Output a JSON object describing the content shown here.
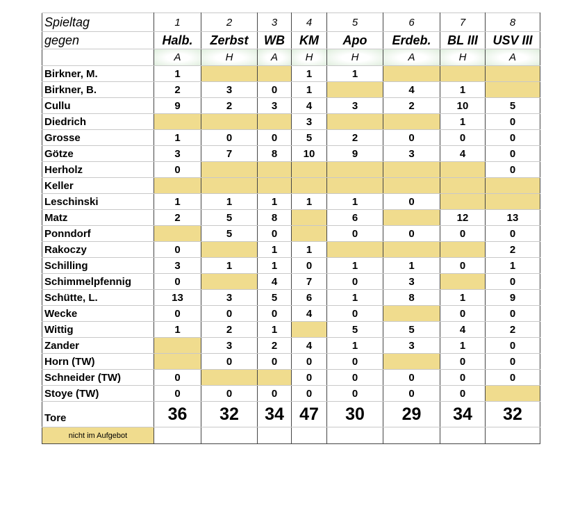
{
  "header": {
    "spieltag_label": "Spieltag",
    "gegen_label": "gegen",
    "spieltage": [
      "1",
      "2",
      "3",
      "4",
      "5",
      "6",
      "7",
      "8"
    ],
    "gegner": [
      "Halb.",
      "Zerbst",
      "WB",
      "KM",
      "Apo",
      "Erdeb.",
      "BL III",
      "USV III"
    ],
    "heim_auswaerts": [
      "A",
      "H",
      "A",
      "H",
      "H",
      "A",
      "H",
      "A"
    ]
  },
  "players": [
    {
      "name": "Birkner, M.",
      "goals": [
        "1",
        null,
        null,
        "1",
        "1",
        null,
        null,
        null
      ]
    },
    {
      "name": "Birkner, B.",
      "goals": [
        "2",
        "3",
        "0",
        "1",
        null,
        "4",
        "1",
        null
      ]
    },
    {
      "name": "Cullu",
      "goals": [
        "9",
        "2",
        "3",
        "4",
        "3",
        "2",
        "10",
        "5"
      ]
    },
    {
      "name": "Diedrich",
      "goals": [
        null,
        null,
        null,
        "3",
        null,
        null,
        "1",
        "0"
      ]
    },
    {
      "name": "Grosse",
      "goals": [
        "1",
        "0",
        "0",
        "5",
        "2",
        "0",
        "0",
        "0"
      ]
    },
    {
      "name": "Götze",
      "goals": [
        "3",
        "7",
        "8",
        "10",
        "9",
        "3",
        "4",
        "0"
      ]
    },
    {
      "name": "Herholz",
      "goals": [
        "0",
        null,
        null,
        null,
        null,
        null,
        null,
        "0"
      ]
    },
    {
      "name": "Keller",
      "goals": [
        null,
        null,
        null,
        null,
        null,
        null,
        null,
        null
      ]
    },
    {
      "name": "Leschinski",
      "goals": [
        "1",
        "1",
        "1",
        "1",
        "1",
        "0",
        null,
        null
      ]
    },
    {
      "name": "Matz",
      "goals": [
        "2",
        "5",
        "8",
        null,
        "6",
        null,
        "12",
        "13"
      ]
    },
    {
      "name": "Ponndorf",
      "goals": [
        null,
        "5",
        "0",
        null,
        "0",
        "0",
        "0",
        "0"
      ]
    },
    {
      "name": "Rakoczy",
      "goals": [
        "0",
        null,
        "1",
        "1",
        null,
        null,
        null,
        "2"
      ]
    },
    {
      "name": "Schilling",
      "goals": [
        "3",
        "1",
        "1",
        "0",
        "1",
        "1",
        "0",
        "1"
      ]
    },
    {
      "name": "Schimmelpfennig",
      "goals": [
        "0",
        null,
        "4",
        "7",
        "0",
        "3",
        null,
        "0"
      ]
    },
    {
      "name": "Schütte, L.",
      "goals": [
        "13",
        "3",
        "5",
        "6",
        "1",
        "8",
        "1",
        "9"
      ]
    },
    {
      "name": "Wecke",
      "goals": [
        "0",
        "0",
        "0",
        "4",
        "0",
        null,
        "0",
        "0"
      ]
    },
    {
      "name": "Wittig",
      "goals": [
        "1",
        "2",
        "1",
        null,
        "5",
        "5",
        "4",
        "2"
      ]
    },
    {
      "name": "Zander",
      "goals": [
        null,
        "3",
        "2",
        "4",
        "1",
        "3",
        "1",
        "0"
      ]
    },
    {
      "name": "Horn (TW)",
      "goals": [
        null,
        "0",
        "0",
        "0",
        "0",
        null,
        "0",
        "0"
      ]
    },
    {
      "name": "Schneider (TW)",
      "goals": [
        "0",
        null,
        null,
        "0",
        "0",
        "0",
        "0",
        "0"
      ]
    },
    {
      "name": "Stoye (TW)",
      "goals": [
        "0",
        "0",
        "0",
        "0",
        "0",
        "0",
        "0",
        null
      ]
    }
  ],
  "totals": {
    "label": "Tore",
    "values": [
      "36",
      "32",
      "34",
      "47",
      "30",
      "29",
      "34",
      "32"
    ]
  },
  "legend": {
    "label": "nicht im Aufgebot",
    "color": "#f0dc8e"
  }
}
